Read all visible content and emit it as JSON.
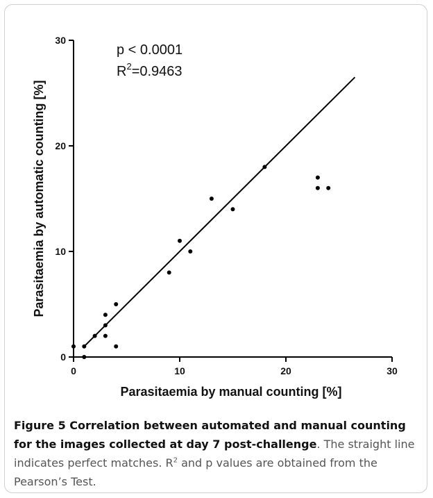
{
  "chart_data": {
    "type": "scatter",
    "xlabel": "Parasitaemia by manual counting [%]",
    "ylabel": "Parasitaemia by automatic counting [%]",
    "xlim": [
      0,
      30
    ],
    "ylim": [
      0,
      30
    ],
    "xticks": [
      "0",
      "10",
      "20",
      "30"
    ],
    "yticks": [
      "0",
      "10",
      "20",
      "30"
    ],
    "points": [
      {
        "x": 0,
        "y": 1
      },
      {
        "x": 1,
        "y": 1
      },
      {
        "x": 1,
        "y": 0
      },
      {
        "x": 2,
        "y": 2
      },
      {
        "x": 3,
        "y": 4
      },
      {
        "x": 3,
        "y": 3
      },
      {
        "x": 3,
        "y": 2
      },
      {
        "x": 4,
        "y": 5
      },
      {
        "x": 4,
        "y": 1
      },
      {
        "x": 9,
        "y": 8
      },
      {
        "x": 10,
        "y": 11
      },
      {
        "x": 11,
        "y": 10
      },
      {
        "x": 13,
        "y": 15
      },
      {
        "x": 15,
        "y": 14
      },
      {
        "x": 18,
        "y": 18
      },
      {
        "x": 23,
        "y": 17
      },
      {
        "x": 23,
        "y": 16
      },
      {
        "x": 24,
        "y": 16
      }
    ],
    "line": {
      "x": [
        1,
        26.5
      ],
      "y": [
        1,
        26.5
      ]
    },
    "annotations": {
      "p_value": "p < 0.0001",
      "r2_label": "R",
      "r2_sup": "2",
      "r2_value": "=0.9463"
    },
    "grid": false,
    "point_color": "#000000"
  },
  "caption": {
    "title": "Figure 5 Correlation between automated and manual counting for the images collected at day 7 post-challenge",
    "text_before_sup": ". The straight line indicates perfect matches. R",
    "sup": "2",
    "text_after_sup": " and p values are obtained from the Pearson’s Test."
  }
}
